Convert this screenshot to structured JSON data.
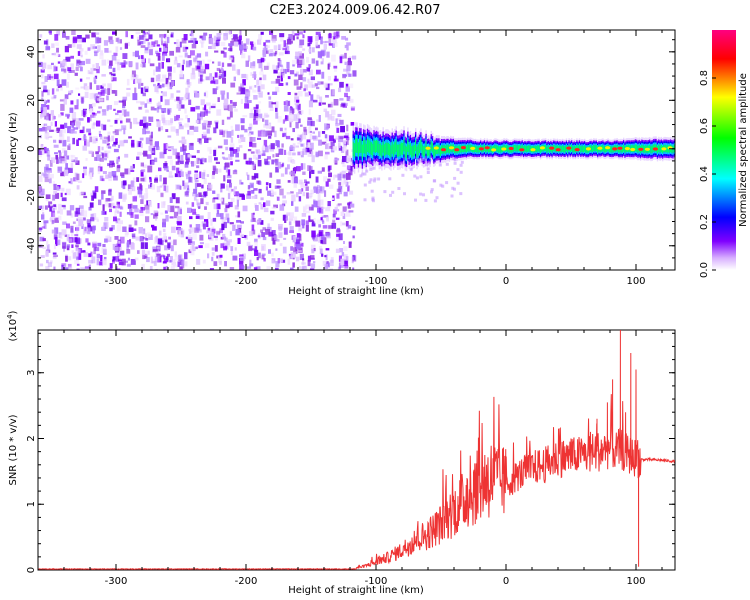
{
  "title": "C2E3.2024.009.06.42.R07",
  "chart_data": [
    {
      "type": "heatmap",
      "xlabel": "Height of straight line (km)",
      "ylabel": "Frequency (Hz)",
      "xlim": [
        -360,
        130
      ],
      "ylim": [
        -50,
        49
      ],
      "x_ticks": [
        -300,
        -200,
        -100,
        0,
        100
      ],
      "x_tick_labels": [
        "-300",
        "-200",
        "-100",
        "0",
        "100"
      ],
      "y_ticks": [
        -40,
        -20,
        0,
        20,
        40
      ],
      "y_tick_labels": [
        "-40",
        "-20",
        "0",
        "20",
        "40"
      ],
      "noise_region_x": [
        -360,
        -118
      ],
      "signal_region_x": [
        -118,
        130
      ],
      "signal_center_frequency": 0,
      "signal_band_halfwidth": [
        {
          "x": -115,
          "hw": 6
        },
        {
          "x": -100,
          "hw": 5
        },
        {
          "x": -80,
          "hw": 5
        },
        {
          "x": -60,
          "hw": 4
        },
        {
          "x": -40,
          "hw": 3
        },
        {
          "x": -20,
          "hw": 2.5
        },
        {
          "x": 0,
          "hw": 2.5
        },
        {
          "x": 40,
          "hw": 2.5
        },
        {
          "x": 80,
          "hw": 2.5
        },
        {
          "x": 110,
          "hw": 3
        },
        {
          "x": 130,
          "hw": 3
        }
      ],
      "grid": false,
      "colorbar": {
        "label": "Normalized spectral amplitude",
        "range": [
          0,
          1
        ],
        "ticks": [
          0.0,
          0.2,
          0.4,
          0.6,
          0.8
        ],
        "tick_labels": [
          "0.0",
          "0.2",
          "0.4",
          "0.6",
          "0.8"
        ],
        "colors": [
          "#ffffff",
          "#7f00ff",
          "#0000ff",
          "#00ffff",
          "#00ff00",
          "#ffff00",
          "#ff0000",
          "#ff0080"
        ]
      }
    },
    {
      "type": "line",
      "xlabel": "Height of straight line (km)",
      "ylabel": "SNR (10 * v/v)",
      "y_scale_label": "(x10",
      "y_scale_exp": "4",
      "y_scale_close": ")",
      "xlim": [
        -360,
        130
      ],
      "ylim": [
        0,
        3.65
      ],
      "x_ticks": [
        -300,
        -200,
        -100,
        0,
        100
      ],
      "x_tick_labels": [
        "-300",
        "-200",
        "-100",
        "0",
        "100"
      ],
      "y_ticks": [
        0,
        1,
        2,
        3
      ],
      "y_tick_labels": [
        "0",
        "1",
        "2",
        "3"
      ],
      "line_color": "#ee3333",
      "grid": false,
      "series": [
        {
          "x": [
            -360,
            -300,
            -200,
            -120,
            -110,
            -100,
            -90,
            -80,
            -70,
            -60,
            -50,
            -40,
            -30,
            -20,
            -10,
            0,
            10,
            20,
            30,
            40,
            50,
            60,
            70,
            80,
            85,
            88,
            90,
            95,
            100,
            104,
            110,
            120,
            130
          ],
          "envelope": [
            0.01,
            0.01,
            0.01,
            0.02,
            0.05,
            0.12,
            0.2,
            0.3,
            0.45,
            0.55,
            0.7,
            0.9,
            1.1,
            1.3,
            1.4,
            1.3,
            1.45,
            1.55,
            1.6,
            1.7,
            1.72,
            1.75,
            1.8,
            1.85,
            1.8,
            1.85,
            1.8,
            1.75,
            1.7,
            1.68,
            1.68,
            1.67,
            1.65
          ],
          "peaks": [
            {
              "x": -40,
              "y": 1.05
            },
            {
              "x": -30,
              "y": 1.4
            },
            {
              "x": -25,
              "y": 1.5
            },
            {
              "x": -15,
              "y": 1.6
            },
            {
              "x": -10,
              "y": 1.7
            },
            {
              "x": 0,
              "y": 1.4
            },
            {
              "x": 50,
              "y": 2.0
            },
            {
              "x": 65,
              "y": 2.1
            },
            {
              "x": 70,
              "y": 2.3
            },
            {
              "x": 78,
              "y": 2.55
            },
            {
              "x": 82,
              "y": 2.9
            },
            {
              "x": 88,
              "y": 3.65
            },
            {
              "x": 92,
              "y": 2.4
            },
            {
              "x": 96,
              "y": 3.3
            },
            {
              "x": 100,
              "y": 3.05
            },
            {
              "x": 102,
              "y": 0.05
            }
          ]
        }
      ]
    }
  ]
}
